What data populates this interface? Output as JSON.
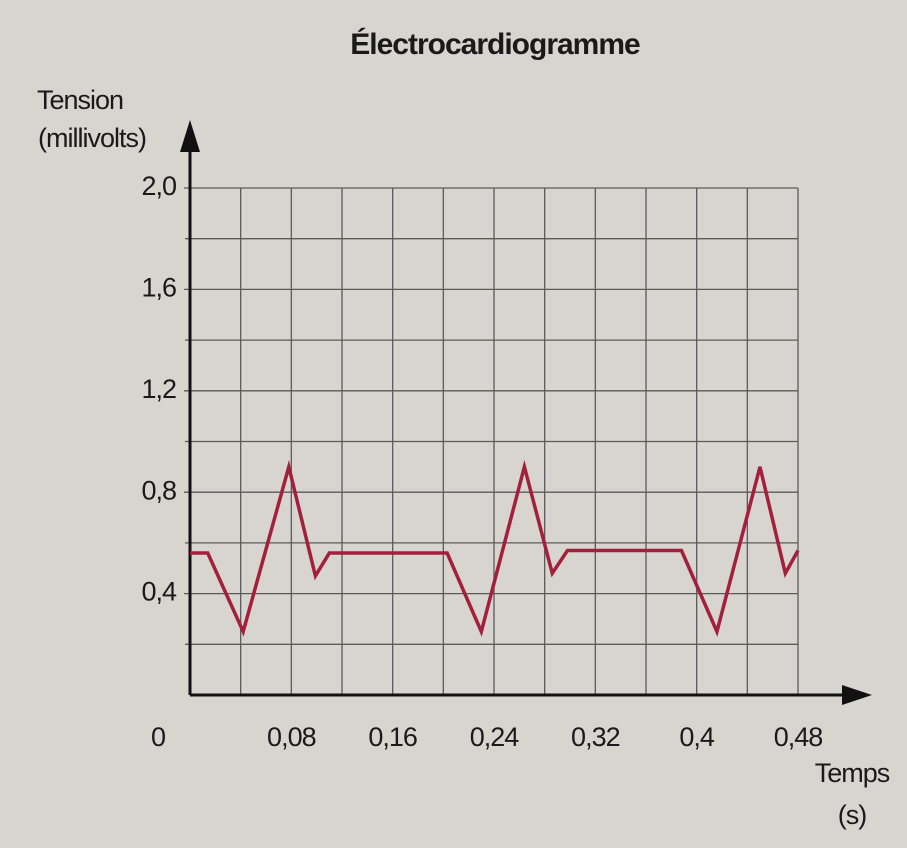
{
  "chart_data": {
    "type": "line",
    "title": "Électrocardiogramme",
    "ylabel": [
      "Tension",
      "(millivolts)"
    ],
    "xlabel": [
      "Temps",
      "(s)"
    ],
    "xlim": [
      0,
      0.48
    ],
    "ylim": [
      0,
      2
    ],
    "xticks": [
      0,
      {
        "value": 0.08,
        "label": "0,08"
      },
      {
        "value": 0.16,
        "label": "0,16"
      },
      {
        "value": 0.24,
        "label": "0,24"
      },
      {
        "value": 0.32,
        "label": "0,32"
      },
      {
        "value": 0.4,
        "label": "0,4"
      },
      {
        "value": 0.48,
        "label": "0,48"
      }
    ],
    "yticks": [
      {
        "value": 0.4,
        "label": "0,4"
      },
      {
        "value": 0.8,
        "label": "0,8"
      },
      {
        "value": 1.2,
        "label": "1,2"
      },
      {
        "value": 1.6,
        "label": "1,6"
      },
      {
        "value": 2,
        "label": "2,0"
      }
    ],
    "grid": true,
    "x": [
      0,
      0.014,
      0.042,
      0.078,
      0.099,
      0.11,
      0.203,
      0.23,
      0.264,
      0.286,
      0.298,
      0.388,
      0.416,
      0.45,
      0.47,
      0.48
    ],
    "series": [
      {
        "color": "#a3203d",
        "values": [
          0.56,
          0.56,
          0.25,
          0.9,
          0.47,
          0.56,
          0.56,
          0.25,
          0.9,
          0.48,
          0.57,
          0.57,
          0.25,
          0.9,
          0.48,
          0.57
        ]
      }
    ]
  }
}
